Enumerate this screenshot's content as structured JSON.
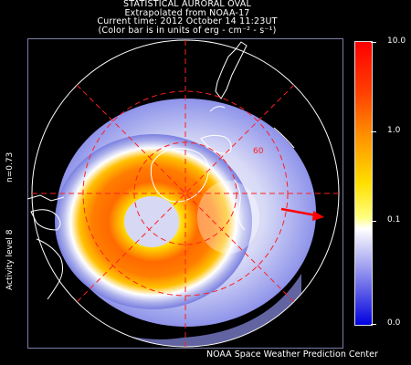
{
  "title": {
    "line1": "STATISTICAL AURORAL OVAL",
    "line2": "Extrapolated from NOAA-17",
    "line3": "Current time: 2012 October 14 11:23UT",
    "line4": "(Color bar is in units of erg - cm⁻² - s⁻¹)"
  },
  "side_labels": {
    "n_value": "n=0.73",
    "activity": "Activity level 8"
  },
  "map": {
    "latitude_label": "60"
  },
  "colorbar": {
    "scale": "log",
    "ticks": [
      "10.0",
      "1.0",
      "0.1",
      "0.0"
    ],
    "colors": [
      "#ff0000",
      "#ff8000",
      "#ffff00",
      "#ffffff",
      "#0000ff"
    ]
  },
  "footer": "NOAA Space Weather Prediction Center"
}
